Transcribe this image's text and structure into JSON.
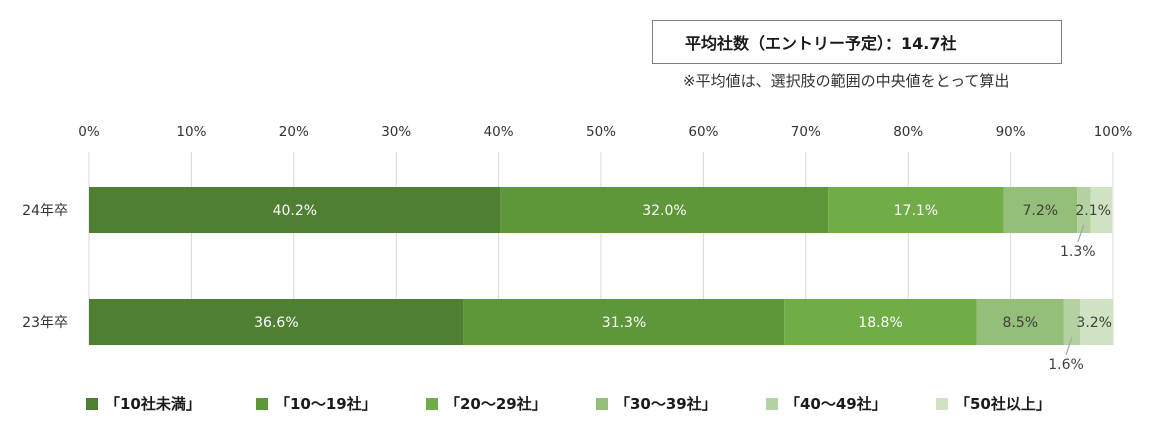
{
  "summary": {
    "average_text": "平均社数（エントリー予定）：14.7社",
    "note": "※平均値は、選択肢の範囲の中央値をとって算出"
  },
  "chart_data": {
    "type": "bar",
    "orientation": "horizontal-stacked-100",
    "categories": [
      "24年卒",
      "23年卒"
    ],
    "xlim": [
      0,
      100
    ],
    "x_ticks": [
      "0%",
      "10%",
      "20%",
      "30%",
      "40%",
      "50%",
      "60%",
      "70%",
      "80%",
      "90%",
      "100%"
    ],
    "grid": true,
    "legend_position": "bottom",
    "series": [
      {
        "name": "「10社未満」",
        "values": [
          40.2,
          36.6
        ],
        "color": "#4f7f32",
        "label_color": "#ffffff"
      },
      {
        "name": "「10～19社」",
        "values": [
          32.0,
          31.3
        ],
        "color": "#5e963a",
        "label_color": "#ffffff"
      },
      {
        "name": "「20～29社」",
        "values": [
          17.1,
          18.8
        ],
        "color": "#70ad47",
        "label_color": "#ffffff"
      },
      {
        "name": "「30～39社」",
        "values": [
          7.2,
          8.5
        ],
        "color": "#94bf79",
        "label_color": "#404040"
      },
      {
        "name": "「40～49社」",
        "values": [
          1.3,
          1.6
        ],
        "color": "#b4d2a1",
        "label_color": "#404040"
      },
      {
        "name": "「50社以上」",
        "values": [
          2.1,
          3.2
        ],
        "color": "#cfe2c2",
        "label_color": "#404040"
      }
    ],
    "data_labels": [
      [
        "40.2%",
        "32.0%",
        "17.1%",
        "7.2%",
        "1.3%",
        "2.1%"
      ],
      [
        "36.6%",
        "31.3%",
        "18.8%",
        "8.5%",
        "1.6%",
        "3.2%"
      ]
    ]
  }
}
